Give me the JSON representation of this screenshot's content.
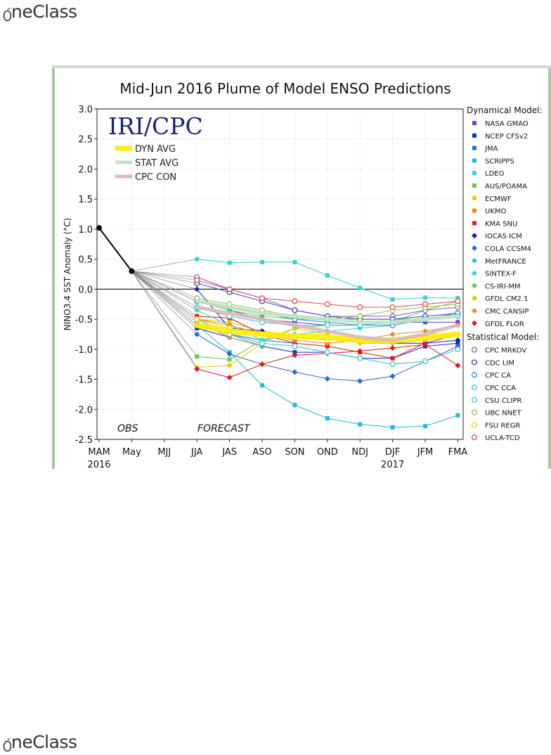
{
  "header": {
    "brand_text": "neClass"
  },
  "footer": {
    "brand_text": "neClass"
  },
  "colors": {
    "brand_green": "#55a04a",
    "brand_text": "#333333",
    "frame_border": "#a7c7a9"
  },
  "chart_data": {
    "type": "line",
    "title": "Mid-Jun 2016 Plume of Model ENSO Predictions",
    "ylabel": "NINO3.4 SST Anomaly (°C)",
    "xlabel": "",
    "ylim": [
      -2.5,
      3.0
    ],
    "yticks": [
      "3.0",
      "2.5",
      "2.0",
      "1.5",
      "1.0",
      "0.5",
      "0.0",
      "-0.5",
      "-1.0",
      "-1.5",
      "-2.0",
      "-2.5"
    ],
    "categories": [
      "MAM",
      "May",
      "MJJ",
      "JJA",
      "JAS",
      "ASO",
      "SON",
      "OND",
      "NDJ",
      "DJF",
      "JFM",
      "FMA"
    ],
    "year_labels": [
      {
        "label": "2016",
        "x": "MAM"
      },
      {
        "label": "2017",
        "x": "DJF"
      }
    ],
    "logo": "IRI/CPC",
    "obs_label": "OBS",
    "forecast_label": "FORECAST",
    "grid": true,
    "legend_position": "right",
    "averages_legend": [
      {
        "name": "DYN AVG",
        "color": "#ffee00"
      },
      {
        "name": "STAT AVG",
        "color": "#c2e2c2"
      },
      {
        "name": "CPC CON",
        "color": "#d8b8bc"
      }
    ],
    "legend_groups": [
      {
        "title": "Dynamical Model:",
        "items": [
          {
            "name": "NASA GMAO",
            "color": "#7a3fbf",
            "marker": "square"
          },
          {
            "name": "NCEP CFSv2",
            "color": "#1433cc",
            "marker": "square"
          },
          {
            "name": "JMA",
            "color": "#2a6fdc",
            "marker": "square"
          },
          {
            "name": "SCRIPPS",
            "color": "#22b8e0",
            "marker": "square"
          },
          {
            "name": "LDEO",
            "color": "#30d4d4",
            "marker": "square"
          },
          {
            "name": "AUS/POAMA",
            "color": "#66cc44",
            "marker": "square"
          },
          {
            "name": "ECMWF",
            "color": "#f5c400",
            "marker": "square"
          },
          {
            "name": "UKMO",
            "color": "#f08a1e",
            "marker": "square"
          },
          {
            "name": "KMA SNU",
            "color": "#e81818",
            "marker": "square"
          },
          {
            "name": "IOCAS ICM",
            "color": "#1226a8",
            "marker": "diamond"
          },
          {
            "name": "COLA CCSM4",
            "color": "#2a66d8",
            "marker": "diamond"
          },
          {
            "name": "MetFRANCE",
            "color": "#33bbee",
            "marker": "diamond"
          },
          {
            "name": "SINTEX-F",
            "color": "#3ad6cc",
            "marker": "diamond"
          },
          {
            "name": "CS-IRI-MM",
            "color": "#66cc44",
            "marker": "diamond"
          },
          {
            "name": "GFDL CM2.1",
            "color": "#f5c400",
            "marker": "diamond"
          },
          {
            "name": "CMC CANSIP",
            "color": "#f08a1e",
            "marker": "diamond"
          },
          {
            "name": "GFDL FLOR",
            "color": "#e81818",
            "marker": "diamond"
          }
        ]
      },
      {
        "title": "Statistical Model:",
        "items": [
          {
            "name": "CPC MRKOV",
            "color": "#9955cc",
            "marker": "circle"
          },
          {
            "name": "CDC LIM",
            "color": "#3344cc",
            "marker": "circle"
          },
          {
            "name": "CPC CA",
            "color": "#3388dd",
            "marker": "circle"
          },
          {
            "name": "CPC CCA",
            "color": "#33c4dd",
            "marker": "circle"
          },
          {
            "name": "CSU CLIPR",
            "color": "#33cccc",
            "marker": "circle"
          },
          {
            "name": "UBC NNET",
            "color": "#88cc44",
            "marker": "circle"
          },
          {
            "name": "FSU REGR",
            "color": "#f5d000",
            "marker": "circle"
          },
          {
            "name": "UCLA-TCD",
            "color": "#ee4444",
            "marker": "circle"
          }
        ]
      }
    ],
    "observations": [
      {
        "x": "MAM",
        "y": 1.02
      },
      {
        "x": "May",
        "y": 0.3
      }
    ],
    "series": [
      {
        "name": "NASA GMAO",
        "color": "#7a3fbf",
        "marker": "square",
        "values": [
          null,
          0.3,
          null,
          -0.2,
          -0.35,
          -0.5,
          -0.55,
          -0.6,
          -0.6,
          -0.55,
          -0.55,
          -0.55
        ]
      },
      {
        "name": "NCEP CFSv2",
        "color": "#1433cc",
        "marker": "square",
        "values": [
          null,
          0.3,
          null,
          -0.65,
          -0.8,
          -0.95,
          -1.05,
          -1.05,
          -1.15,
          -1.15,
          -0.95,
          -0.9
        ]
      },
      {
        "name": "JMA",
        "color": "#2a6fdc",
        "marker": "square",
        "values": [
          null,
          0.3,
          null,
          -0.6,
          -0.75,
          -0.85,
          -0.9,
          null,
          null,
          null,
          null,
          null
        ]
      },
      {
        "name": "SCRIPPS",
        "color": "#22b8e0",
        "marker": "square",
        "values": [
          null,
          0.3,
          null,
          -0.6,
          -1.05,
          -1.6,
          -1.93,
          -2.15,
          -2.25,
          -2.3,
          -2.28,
          -2.1
        ]
      },
      {
        "name": "LDEO",
        "color": "#30d4d4",
        "marker": "square",
        "values": [
          null,
          0.3,
          null,
          0.5,
          0.44,
          0.45,
          0.45,
          0.23,
          0.02,
          -0.17,
          -0.14,
          -0.15
        ]
      },
      {
        "name": "AUS/POAMA",
        "color": "#66cc44",
        "marker": "square",
        "values": [
          null,
          0.3,
          null,
          -1.12,
          -1.17,
          -0.85,
          -0.65,
          -0.6,
          -0.6,
          -0.55,
          -0.35,
          -0.2
        ]
      },
      {
        "name": "ECMWF",
        "color": "#f5c400",
        "marker": "square",
        "values": [
          null,
          0.3,
          null,
          -0.5,
          -0.55,
          -0.7,
          null,
          null,
          null,
          null,
          null,
          null
        ]
      },
      {
        "name": "UKMO",
        "color": "#f08a1e",
        "marker": "square",
        "values": [
          null,
          0.3,
          null,
          -0.55,
          -0.8,
          -0.95,
          null,
          null,
          null,
          null,
          null,
          null
        ]
      },
      {
        "name": "KMA SNU",
        "color": "#e81818",
        "marker": "square",
        "values": [
          null,
          0.3,
          null,
          -0.45,
          -0.48,
          -0.75,
          -0.9,
          -0.95,
          -1.05,
          -1.15,
          -0.9,
          -0.75
        ]
      },
      {
        "name": "IOCAS ICM",
        "color": "#1226a8",
        "marker": "diamond",
        "values": [
          null,
          0.3,
          null,
          0.0,
          -0.65,
          -0.7,
          -0.8,
          -0.85,
          -0.85,
          -0.9,
          -0.9,
          -0.85
        ]
      },
      {
        "name": "COLA CCSM4",
        "color": "#2a66d8",
        "marker": "diamond",
        "values": [
          null,
          0.3,
          null,
          -0.75,
          -1.08,
          -1.25,
          -1.38,
          -1.49,
          -1.53,
          -1.45,
          -1.2,
          -0.95
        ]
      },
      {
        "name": "MetFRANCE",
        "color": "#33bbee",
        "marker": "diamond",
        "values": [
          null,
          0.3,
          null,
          -0.5,
          -0.75,
          -0.95,
          null,
          null,
          null,
          null,
          null,
          null
        ]
      },
      {
        "name": "SINTEX-F",
        "color": "#3ad6cc",
        "marker": "diamond",
        "values": [
          null,
          0.3,
          null,
          -0.35,
          -0.6,
          -0.85,
          -0.75,
          -0.7,
          -0.65,
          -0.6,
          -0.5,
          -0.4
        ]
      },
      {
        "name": "CS-IRI-MM",
        "color": "#66cc44",
        "marker": "diamond",
        "values": [
          null,
          0.3,
          null,
          -0.2,
          -0.35,
          -0.45,
          -0.5,
          -0.5,
          -0.5,
          -0.5,
          -0.5,
          -0.4
        ]
      },
      {
        "name": "GFDL CM2.1",
        "color": "#f5c400",
        "marker": "diamond",
        "values": [
          null,
          0.3,
          null,
          -1.3,
          -1.27,
          -0.9,
          -0.65,
          -0.75,
          -0.9,
          -0.9,
          -0.85,
          -0.75
        ]
      },
      {
        "name": "CMC CANSIP",
        "color": "#f08a1e",
        "marker": "diamond",
        "values": [
          null,
          0.3,
          null,
          -0.5,
          -0.6,
          -0.75,
          -0.85,
          -0.9,
          -0.85,
          -0.75,
          -0.7,
          -0.6
        ]
      },
      {
        "name": "GFDL FLOR",
        "color": "#e81818",
        "marker": "diamond",
        "values": [
          null,
          0.3,
          null,
          -1.33,
          -1.47,
          -1.25,
          -1.1,
          -1.07,
          -1.03,
          -0.98,
          -0.92,
          -1.27
        ]
      },
      {
        "name": "CPC MRKOV",
        "color": "#9955cc",
        "marker": "circle",
        "values": [
          null,
          0.3,
          null,
          0.2,
          0.0,
          -0.15,
          -0.35,
          -0.45,
          -0.45,
          -0.45,
          -0.35,
          -0.3
        ]
      },
      {
        "name": "CDC LIM",
        "color": "#3344cc",
        "marker": "circle",
        "values": [
          null,
          0.3,
          null,
          0.1,
          -0.05,
          -0.2,
          -0.35,
          -0.45,
          -0.5,
          -0.5,
          -0.45,
          -0.4
        ]
      },
      {
        "name": "CPC CA",
        "color": "#3388dd",
        "marker": "circle",
        "values": [
          null,
          0.3,
          null,
          -0.2,
          -0.3,
          -0.4,
          -0.5,
          -0.55,
          -0.6,
          -0.6,
          -0.5,
          -0.4
        ]
      },
      {
        "name": "CPC CCA",
        "color": "#33c4dd",
        "marker": "circle",
        "values": [
          null,
          0.3,
          null,
          -0.5,
          -0.75,
          -0.9,
          -0.95,
          -1.05,
          -1.15,
          -1.25,
          -1.2,
          -1.0
        ]
      },
      {
        "name": "CSU CLIPR",
        "color": "#33cccc",
        "marker": "circle",
        "values": [
          null,
          0.3,
          null,
          -0.3,
          -0.45,
          -0.55,
          -0.6,
          -0.6,
          -0.6,
          -0.55,
          -0.5,
          -0.45
        ]
      },
      {
        "name": "UBC NNET",
        "color": "#88cc44",
        "marker": "circle",
        "values": [
          null,
          0.3,
          null,
          -0.15,
          -0.25,
          -0.35,
          -0.45,
          -0.5,
          -0.45,
          -0.35,
          -0.3,
          -0.25
        ]
      },
      {
        "name": "FSU REGR",
        "color": "#f5d000",
        "marker": "circle",
        "values": [
          null,
          0.3,
          null,
          -0.5,
          -0.65,
          -0.75,
          -0.8,
          -0.85,
          -0.85,
          -0.85,
          -0.8,
          -0.75
        ]
      },
      {
        "name": "UCLA-TCD",
        "color": "#ee4444",
        "marker": "circle",
        "values": [
          null,
          0.3,
          null,
          0.15,
          0.0,
          -0.15,
          -0.2,
          -0.25,
          -0.3,
          -0.3,
          -0.25,
          -0.2
        ]
      }
    ],
    "averages": [
      {
        "name": "DYN AVG",
        "color": "#ffee00",
        "values": [
          null,
          0.3,
          null,
          -0.6,
          -0.7,
          -0.75,
          -0.78,
          -0.8,
          -0.85,
          -0.85,
          -0.8,
          -0.75
        ]
      },
      {
        "name": "STAT AVG",
        "color": "#c2e2c2",
        "values": [
          null,
          0.3,
          null,
          -0.2,
          -0.3,
          -0.4,
          -0.45,
          -0.5,
          -0.55,
          -0.55,
          -0.5,
          -0.45
        ]
      },
      {
        "name": "CPC CON",
        "color": "#d8b8bc",
        "values": [
          null,
          0.3,
          null,
          -0.3,
          -0.4,
          -0.5,
          -0.6,
          -0.7,
          -0.8,
          -0.85,
          -0.75,
          -0.6
        ]
      }
    ]
  }
}
